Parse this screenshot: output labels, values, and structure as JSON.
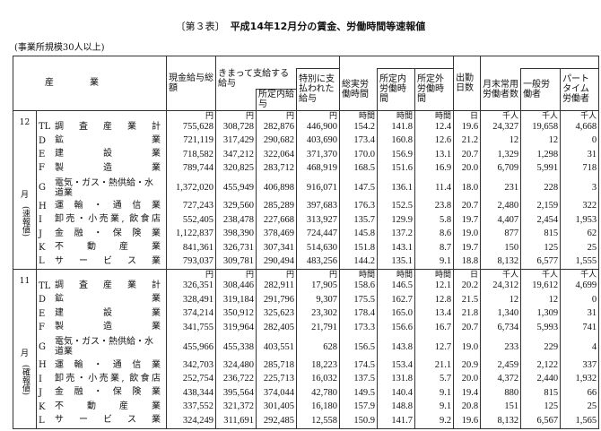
{
  "title": {
    "tag": "〔第３表〕",
    "text": "平成14年12月分の賃金、労働時間等速報値"
  },
  "scope": "(事業所規模30人以上)",
  "headers": {
    "industry": "産業",
    "total_wage": "現金給与総額",
    "regular_wage": "きまって支給する給与",
    "scheduled_wage": "所定内給与",
    "special_wage": "特別に支払われた給与",
    "total_hours": "総実労働時間",
    "scheduled_hours": "所定内労働時間",
    "overtime_hours": "所定外労働時間",
    "days": "出勤日数",
    "employees": "月末常用労働者数",
    "general": "一般労働者",
    "parttime": "パートタイム労働者"
  },
  "units": [
    "円",
    "円",
    "円",
    "円",
    "時間",
    "時間",
    "時間",
    "日",
    "千人",
    "千人",
    "千人"
  ],
  "sections": [
    {
      "month": "12",
      "month_label": "月",
      "status": "(速報値)",
      "rows": [
        {
          "code": "TL",
          "name": "調査産業計",
          "values": [
            "755,628",
            "308,728",
            "282,876",
            "446,900",
            "154.2",
            "141.8",
            "12.4",
            "19.6",
            "24,327",
            "19,658",
            "4,668"
          ]
        },
        {
          "code": "D",
          "name": "鉱業",
          "values": [
            "721,119",
            "317,429",
            "290,682",
            "403,690",
            "173.4",
            "160.8",
            "12.6",
            "21.2",
            "12",
            "12",
            "0"
          ]
        },
        {
          "code": "E",
          "name": "建設業",
          "values": [
            "718,582",
            "347,212",
            "322,064",
            "371,370",
            "170.0",
            "156.9",
            "13.1",
            "20.7",
            "1,329",
            "1,298",
            "31"
          ]
        },
        {
          "code": "F",
          "name": "製造業",
          "values": [
            "789,744",
            "320,825",
            "283,712",
            "468,919",
            "168.5",
            "151.6",
            "16.9",
            "20.0",
            "6,709",
            "5,991",
            "718"
          ]
        },
        {
          "code": "G",
          "name": "電気・ガス・熱供給・水道業",
          "values": [
            "1,372,020",
            "455,949",
            "406,898",
            "916,071",
            "147.5",
            "136.1",
            "11.4",
            "18.0",
            "231",
            "228",
            "3"
          ]
        },
        {
          "code": "H",
          "name": "運輸・通信業",
          "values": [
            "727,243",
            "329,560",
            "285,289",
            "397,683",
            "176.3",
            "152.5",
            "23.8",
            "20.7",
            "2,480",
            "2,159",
            "322"
          ]
        },
        {
          "code": "I",
          "name": "卸売・小売業, 飲食店",
          "values": [
            "552,405",
            "238,478",
            "227,668",
            "313,927",
            "135.7",
            "129.9",
            "5.8",
            "19.7",
            "4,407",
            "2,454",
            "1,953"
          ]
        },
        {
          "code": "J",
          "name": "金融・保険業",
          "values": [
            "1,122,837",
            "398,390",
            "378,469",
            "724,447",
            "145.8",
            "137.2",
            "8.6",
            "19.0",
            "877",
            "815",
            "62"
          ]
        },
        {
          "code": "K",
          "name": "不動産業",
          "values": [
            "841,361",
            "326,731",
            "307,341",
            "514,630",
            "151.8",
            "143.1",
            "8.7",
            "19.7",
            "150",
            "125",
            "25"
          ]
        },
        {
          "code": "L",
          "name": "サービス業",
          "values": [
            "793,037",
            "309,781",
            "290,494",
            "483,256",
            "144.2",
            "135.1",
            "9.1",
            "18.8",
            "8,132",
            "6,577",
            "1,555"
          ]
        }
      ]
    },
    {
      "month": "11",
      "month_label": "月",
      "status": "(確報値)",
      "rows": [
        {
          "code": "TL",
          "name": "調査産業計",
          "values": [
            "326,351",
            "308,446",
            "282,911",
            "17,905",
            "158.6",
            "146.5",
            "12.1",
            "20.2",
            "24,312",
            "19,612",
            "4,699"
          ]
        },
        {
          "code": "D",
          "name": "鉱業",
          "values": [
            "328,491",
            "319,184",
            "291,796",
            "9,307",
            "175.5",
            "162.7",
            "12.8",
            "21.5",
            "12",
            "12",
            "0"
          ]
        },
        {
          "code": "E",
          "name": "建設業",
          "values": [
            "374,214",
            "350,912",
            "325,623",
            "23,302",
            "178.4",
            "165.0",
            "13.4",
            "21.8",
            "1,340",
            "1,309",
            "31"
          ]
        },
        {
          "code": "F",
          "name": "製造業",
          "values": [
            "341,755",
            "319,964",
            "282,405",
            "21,791",
            "173.3",
            "156.6",
            "16.7",
            "20.7",
            "6,734",
            "5,993",
            "741"
          ]
        },
        {
          "code": "G",
          "name": "電気・ガス・熱供給・水道業",
          "values": [
            "455,966",
            "455,338",
            "403,551",
            "628",
            "156.5",
            "143.8",
            "12.7",
            "19.0",
            "233",
            "229",
            "4"
          ]
        },
        {
          "code": "H",
          "name": "運輸・通信業",
          "values": [
            "342,703",
            "324,480",
            "285,718",
            "18,223",
            "174.5",
            "153.4",
            "21.1",
            "20.9",
            "2,459",
            "2,122",
            "337"
          ]
        },
        {
          "code": "I",
          "name": "卸売・小売業, 飲食店",
          "values": [
            "252,754",
            "236,722",
            "225,713",
            "16,032",
            "137.5",
            "131.8",
            "5.7",
            "20.0",
            "4,372",
            "2,440",
            "1,932"
          ]
        },
        {
          "code": "J",
          "name": "金融・保険業",
          "values": [
            "438,344",
            "395,564",
            "374,044",
            "42,780",
            "149.5",
            "140.4",
            "9.1",
            "19.4",
            "880",
            "815",
            "66"
          ]
        },
        {
          "code": "K",
          "name": "不動産業",
          "values": [
            "337,552",
            "321,372",
            "301,405",
            "16,180",
            "157.9",
            "148.8",
            "9.1",
            "20.8",
            "151",
            "125",
            "25"
          ]
        },
        {
          "code": "L",
          "name": "サービス業",
          "values": [
            "324,249",
            "311,691",
            "292,485",
            "12,558",
            "150.9",
            "141.7",
            "9.2",
            "19.6",
            "8,132",
            "6,567",
            "1,565"
          ]
        }
      ]
    }
  ]
}
